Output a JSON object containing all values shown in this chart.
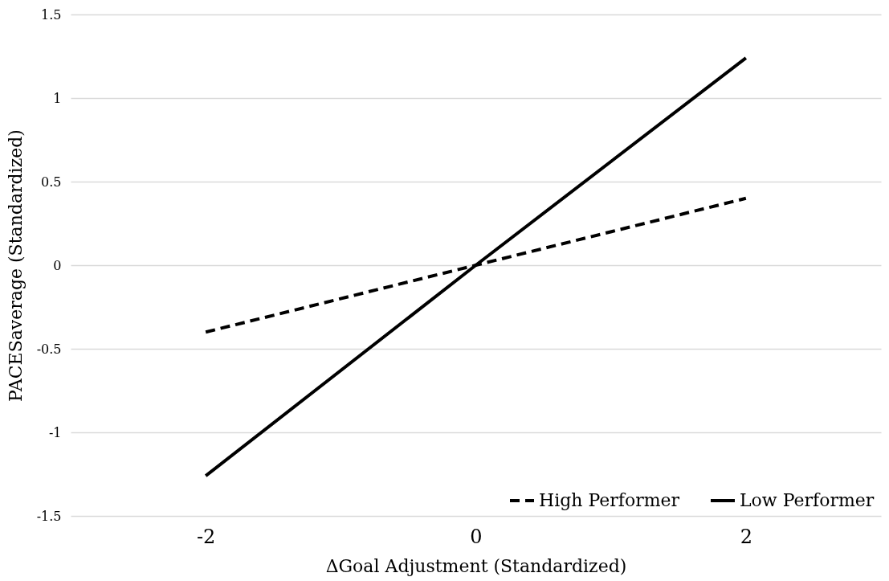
{
  "chart_data": {
    "type": "line",
    "xlabel": "ΔGoal Adjustment (Standardized)",
    "ylabel": "PACESaverage (Standardized)",
    "categories": [
      "-2",
      "0",
      "2"
    ],
    "series": [
      {
        "name": "High Performer",
        "color": "#000000",
        "line_style": "dashed",
        "values": [
          -0.4,
          0,
          0.4
        ]
      },
      {
        "name": "Low Performer",
        "color": "#000000",
        "line_style": "solid",
        "values": [
          -1.26,
          0,
          1.24
        ]
      }
    ],
    "ylim": [
      -1.5,
      1.5
    ],
    "yticks": [
      -1.5,
      -1,
      -0.5,
      0,
      0.5,
      1,
      1.5
    ],
    "grid": "y",
    "legend": "bottom right",
    "marker": "none"
  }
}
